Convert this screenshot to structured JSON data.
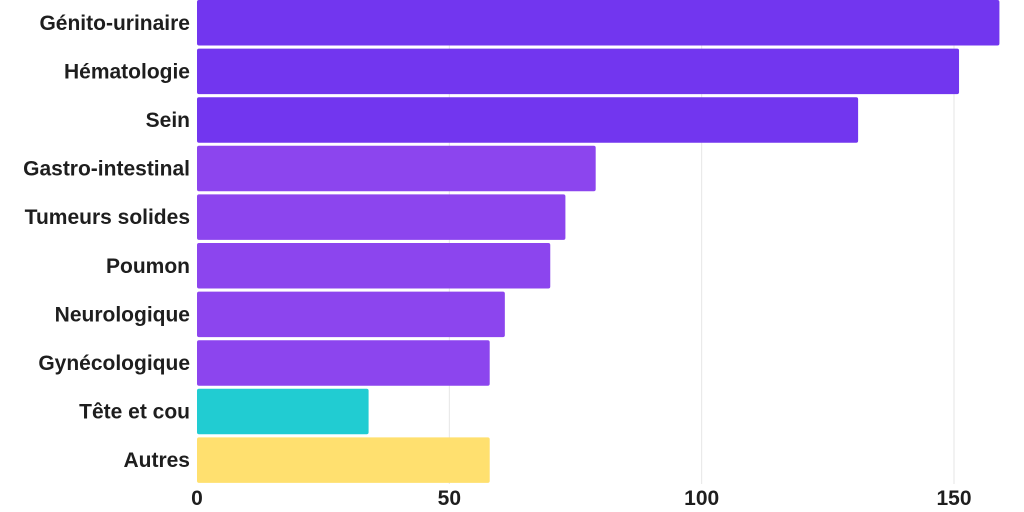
{
  "chart_data": {
    "type": "bar",
    "orientation": "horizontal",
    "categories": [
      "Génito-urinaire",
      "Hématologie",
      "Sein",
      "Gastro-intestinal",
      "Tumeurs solides",
      "Poumon",
      "Neurologique",
      "Gynécologique",
      "Tête et cou",
      "Autres"
    ],
    "values": [
      159,
      151,
      131,
      79,
      73,
      70,
      61,
      58,
      34,
      58
    ],
    "colors": [
      "#7236ef",
      "#7236ef",
      "#7236ef",
      "#8c45ee",
      "#8c45ee",
      "#8c45ee",
      "#8c45ee",
      "#8c45ee",
      "#21ccd2",
      "#ffe06f"
    ],
    "xlim": [
      0,
      160
    ],
    "xticks": [
      0,
      50,
      100,
      150
    ],
    "grid": true,
    "title": "",
    "xlabel": "",
    "ylabel": ""
  }
}
